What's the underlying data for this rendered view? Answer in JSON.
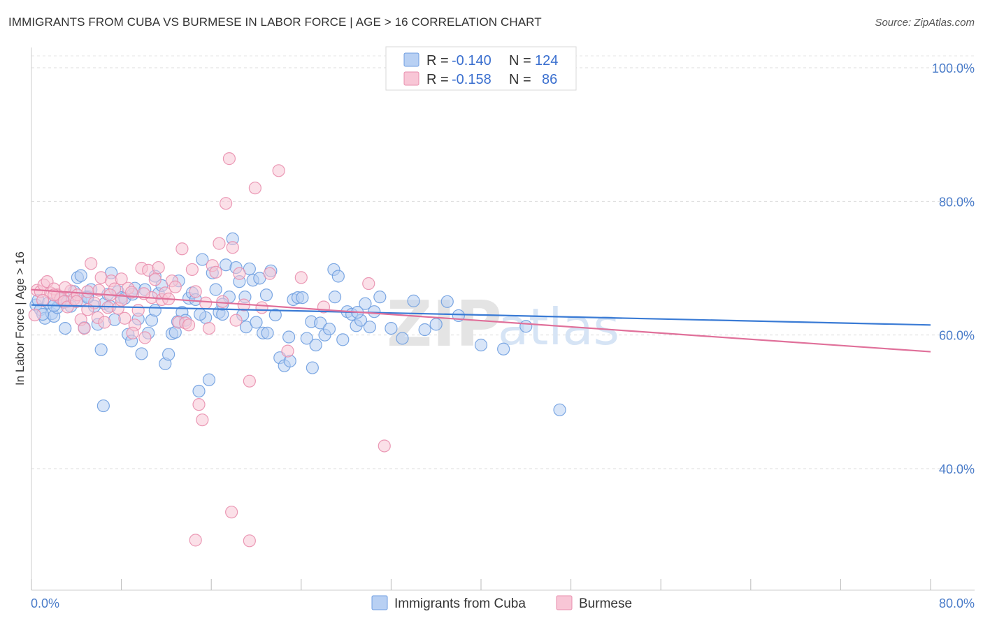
{
  "title": "IMMIGRANTS FROM CUBA VS BURMESE IN LABOR FORCE | AGE > 16 CORRELATION CHART",
  "source": "Source: ZipAtlas.com",
  "watermark": {
    "zip": "ZIP",
    "atlas": "atlas"
  },
  "legend": [
    {
      "r_label": "R =",
      "r_value": "-0.140",
      "n_label": "N =",
      "n_value": "124",
      "fill": "#b8d0f3",
      "stroke": "#6f9ee0"
    },
    {
      "r_label": "R =",
      "r_value": "-0.158",
      "n_label": "N =",
      "n_value": "86",
      "fill": "#f8c6d6",
      "stroke": "#e98fae"
    }
  ],
  "bottom_legend": [
    "Immigrants from Cuba",
    "Burmese"
  ],
  "chart_data": {
    "type": "scatter",
    "ylabel": "In Labor Force | Age > 16",
    "xlim": [
      0,
      80
    ],
    "ylim": [
      18,
      104
    ],
    "x_tick_labels": [
      {
        "value": 0,
        "label": "0.0%"
      },
      {
        "value": 80,
        "label": "80.0%"
      }
    ],
    "y_tick_labels": [
      {
        "value": 100,
        "label": "100.0%"
      },
      {
        "value": 80,
        "label": "80.0%"
      },
      {
        "value": 60,
        "label": "60.0%"
      },
      {
        "value": 40,
        "label": "40.0%"
      }
    ],
    "grid": true,
    "series": [
      {
        "name": "Immigrants from Cuba",
        "color": "#6f9ee0",
        "fill": "#b8d0f3",
        "line_color": "#3a7bd5",
        "trend": [
          [
            0,
            64.5
          ],
          [
            80,
            61.5
          ]
        ],
        "points": [
          [
            0.4,
            64.5
          ],
          [
            0.6,
            65.2
          ],
          [
            0.8,
            63.8
          ],
          [
            1.2,
            62.5
          ],
          [
            1.5,
            64.8
          ],
          [
            1.8,
            63.2
          ],
          [
            2.0,
            62.8
          ],
          [
            2.3,
            64.1
          ],
          [
            2.6,
            65.3
          ],
          [
            2.9,
            64.9
          ],
          [
            3.2,
            65.0
          ],
          [
            3.5,
            64.3
          ],
          [
            3.8,
            66.5
          ],
          [
            4.1,
            68.6
          ],
          [
            4.4,
            65.1
          ],
          [
            4.7,
            61.1
          ],
          [
            5.0,
            65.8
          ],
          [
            5.3,
            66.8
          ],
          [
            5.6,
            64.3
          ],
          [
            5.9,
            61.6
          ],
          [
            6.2,
            57.8
          ],
          [
            6.5,
            64.7
          ],
          [
            6.8,
            66.1
          ],
          [
            7.1,
            69.3
          ],
          [
            7.4,
            62.3
          ],
          [
            7.7,
            66.5
          ],
          [
            8.0,
            65.6
          ],
          [
            8.3,
            65.5
          ],
          [
            8.6,
            60.1
          ],
          [
            8.9,
            59.1
          ],
          [
            9.2,
            67.0
          ],
          [
            9.5,
            62.4
          ],
          [
            9.8,
            57.2
          ],
          [
            10.1,
            66.8
          ],
          [
            10.4,
            60.3
          ],
          [
            10.7,
            62.2
          ],
          [
            11.0,
            68.8
          ],
          [
            11.3,
            66.2
          ],
          [
            11.6,
            67.4
          ],
          [
            11.9,
            55.7
          ],
          [
            12.2,
            57.1
          ],
          [
            12.5,
            60.2
          ],
          [
            12.8,
            60.4
          ],
          [
            13.1,
            68.1
          ],
          [
            13.4,
            63.4
          ],
          [
            13.7,
            62.2
          ],
          [
            14.0,
            65.5
          ],
          [
            14.3,
            66.3
          ],
          [
            14.6,
            65.3
          ],
          [
            14.9,
            51.6
          ],
          [
            15.2,
            71.3
          ],
          [
            15.5,
            62.6
          ],
          [
            15.8,
            53.3
          ],
          [
            16.1,
            69.3
          ],
          [
            16.4,
            66.8
          ],
          [
            16.7,
            63.4
          ],
          [
            17.0,
            63.1
          ],
          [
            17.3,
            70.5
          ],
          [
            17.6,
            65.7
          ],
          [
            17.9,
            74.4
          ],
          [
            18.2,
            70.1
          ],
          [
            18.5,
            68.0
          ],
          [
            18.8,
            63.0
          ],
          [
            19.1,
            61.2
          ],
          [
            19.4,
            69.9
          ],
          [
            19.7,
            68.2
          ],
          [
            20.0,
            61.9
          ],
          [
            20.3,
            68.5
          ],
          [
            20.6,
            60.3
          ],
          [
            20.9,
            66.0
          ],
          [
            21.3,
            69.6
          ],
          [
            21.7,
            63.0
          ],
          [
            22.1,
            56.6
          ],
          [
            22.5,
            55.4
          ],
          [
            22.9,
            59.7
          ],
          [
            23.3,
            65.3
          ],
          [
            23.7,
            65.6
          ],
          [
            24.1,
            65.6
          ],
          [
            24.5,
            59.5
          ],
          [
            24.9,
            62.0
          ],
          [
            25.3,
            58.5
          ],
          [
            25.7,
            61.8
          ],
          [
            26.1,
            60.0
          ],
          [
            26.5,
            60.9
          ],
          [
            26.9,
            69.8
          ],
          [
            27.3,
            68.8
          ],
          [
            27.7,
            59.3
          ],
          [
            28.1,
            63.5
          ],
          [
            28.5,
            63.1
          ],
          [
            28.9,
            61.4
          ],
          [
            29.3,
            62.2
          ],
          [
            29.7,
            64.7
          ],
          [
            30.1,
            61.2
          ],
          [
            30.5,
            63.5
          ],
          [
            31.0,
            65.7
          ],
          [
            32.0,
            61.0
          ],
          [
            33.0,
            59.5
          ],
          [
            34.0,
            65.1
          ],
          [
            35.0,
            60.8
          ],
          [
            36.0,
            61.6
          ],
          [
            37.0,
            65.0
          ],
          [
            38.0,
            62.9
          ],
          [
            40.0,
            58.5
          ],
          [
            42.0,
            57.9
          ],
          [
            44.0,
            61.3
          ],
          [
            47.0,
            48.8
          ],
          [
            6.4,
            49.4
          ],
          [
            4.4,
            68.9
          ],
          [
            2.0,
            64.4
          ],
          [
            1.0,
            63.1
          ],
          [
            3.0,
            61.0
          ],
          [
            5.0,
            65.6
          ],
          [
            7.0,
            64.3
          ],
          [
            9.0,
            66.1
          ],
          [
            11.0,
            63.7
          ],
          [
            13.0,
            62.0
          ],
          [
            15.0,
            63.1
          ],
          [
            17.0,
            64.6
          ],
          [
            19.0,
            65.7
          ],
          [
            21.0,
            60.3
          ],
          [
            23.0,
            56.1
          ],
          [
            25.0,
            55.1
          ],
          [
            27.0,
            65.7
          ],
          [
            29.0,
            63.4
          ]
        ]
      },
      {
        "name": "Burmese",
        "color": "#e98fae",
        "fill": "#f8c6d6",
        "line_color": "#e0709a",
        "trend": [
          [
            0,
            66.8
          ],
          [
            80,
            57.5
          ]
        ],
        "points": [
          [
            0.3,
            63.0
          ],
          [
            0.5,
            66.7
          ],
          [
            0.8,
            66.5
          ],
          [
            1.1,
            67.5
          ],
          [
            1.4,
            68.0
          ],
          [
            1.7,
            66.3
          ],
          [
            2.0,
            66.9
          ],
          [
            2.3,
            66.0
          ],
          [
            2.6,
            65.5
          ],
          [
            2.9,
            65.0
          ],
          [
            3.2,
            64.2
          ],
          [
            3.5,
            66.6
          ],
          [
            3.8,
            65.4
          ],
          [
            4.1,
            66.0
          ],
          [
            4.4,
            62.3
          ],
          [
            4.7,
            61.0
          ],
          [
            5.0,
            66.5
          ],
          [
            5.3,
            70.7
          ],
          [
            5.6,
            64.8
          ],
          [
            5.9,
            62.6
          ],
          [
            6.2,
            68.6
          ],
          [
            6.5,
            61.9
          ],
          [
            6.8,
            64.1
          ],
          [
            7.1,
            68.1
          ],
          [
            7.4,
            66.9
          ],
          [
            7.7,
            64.0
          ],
          [
            8.0,
            68.4
          ],
          [
            8.3,
            62.5
          ],
          [
            8.6,
            67.0
          ],
          [
            8.9,
            66.4
          ],
          [
            9.2,
            61.5
          ],
          [
            9.5,
            63.7
          ],
          [
            9.8,
            70.0
          ],
          [
            10.1,
            59.6
          ],
          [
            10.4,
            69.7
          ],
          [
            10.7,
            65.6
          ],
          [
            11.0,
            68.3
          ],
          [
            11.3,
            70.1
          ],
          [
            11.6,
            65.3
          ],
          [
            11.9,
            66.3
          ],
          [
            12.2,
            65.4
          ],
          [
            12.5,
            68.1
          ],
          [
            12.8,
            67.2
          ],
          [
            13.1,
            61.9
          ],
          [
            13.4,
            72.9
          ],
          [
            13.7,
            61.8
          ],
          [
            14.0,
            61.5
          ],
          [
            14.3,
            69.8
          ],
          [
            14.6,
            66.5
          ],
          [
            14.9,
            49.6
          ],
          [
            15.2,
            47.3
          ],
          [
            15.5,
            64.8
          ],
          [
            15.8,
            61.0
          ],
          [
            16.1,
            70.4
          ],
          [
            16.4,
            69.4
          ],
          [
            16.7,
            73.7
          ],
          [
            17.0,
            65.0
          ],
          [
            17.3,
            79.7
          ],
          [
            17.6,
            86.4
          ],
          [
            17.9,
            73.1
          ],
          [
            18.2,
            62.2
          ],
          [
            18.5,
            69.2
          ],
          [
            18.9,
            64.5
          ],
          [
            19.4,
            53.1
          ],
          [
            19.9,
            82.0
          ],
          [
            20.5,
            64.1
          ],
          [
            21.2,
            69.2
          ],
          [
            22.0,
            84.6
          ],
          [
            22.8,
            57.6
          ],
          [
            24.0,
            68.6
          ],
          [
            14.6,
            29.3
          ],
          [
            17.8,
            33.5
          ],
          [
            19.4,
            29.2
          ],
          [
            31.4,
            43.4
          ],
          [
            30.0,
            67.7
          ],
          [
            26.0,
            64.2
          ],
          [
            10.0,
            66.2
          ],
          [
            8.0,
            65.2
          ],
          [
            6.0,
            66.7
          ],
          [
            4.0,
            65.0
          ],
          [
            2.0,
            66.0
          ],
          [
            1.0,
            65.2
          ],
          [
            3.0,
            67.1
          ],
          [
            5.0,
            63.8
          ],
          [
            7.0,
            66.0
          ],
          [
            9.0,
            60.3
          ]
        ]
      }
    ]
  }
}
